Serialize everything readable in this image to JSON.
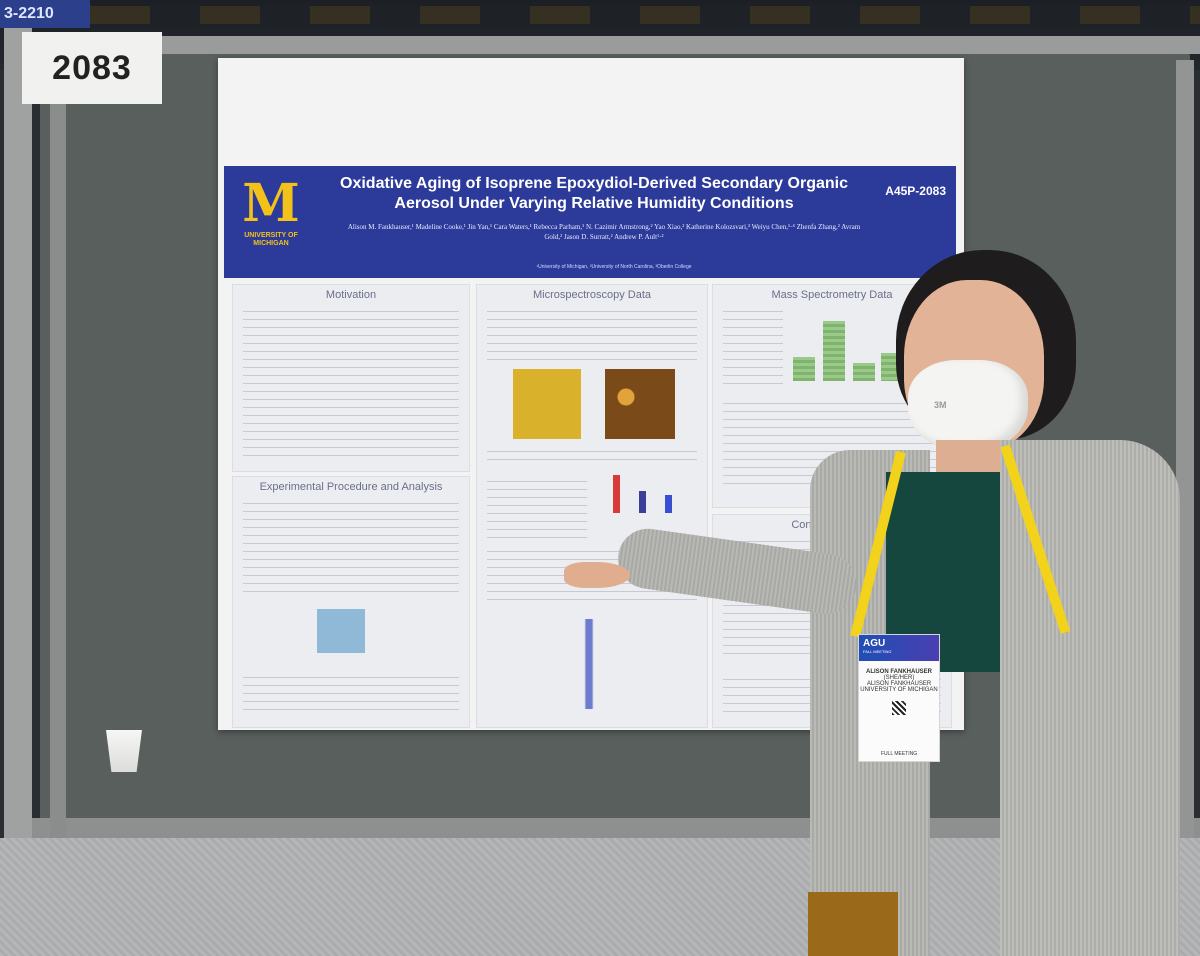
{
  "booth_sign": "3-2210",
  "poster_number": "2083",
  "poster": {
    "title": "Oxidative Aging of Isoprene Epoxydiol-Derived Secondary Organic Aerosol Under Varying Relative Humidity Conditions",
    "id": "A45P-2083",
    "logo_letter": "M",
    "logo_line1": "UNIVERSITY OF",
    "logo_line2": "MICHIGAN",
    "authors": "Alison M. Fankhauser,¹ Madeline Cooke,¹ Jin Yan,¹ Cara Waters,¹ Rebecca Parham,¹ N. Cazimir Armstrong,² Yao Xiao,² Katherine Kolozsvari,³ Weiyu Chen,¹·⁴ Zhenfa Zhang,² Avram Gold,² Jason D. Surratt,² Andrew P. Ault¹·²",
    "affiliations": "¹University of Michigan, ²University of North Carolina, ³Oberlin College",
    "sections": {
      "motivation": "Motivation",
      "microspectroscopy": "Microspectroscopy Data",
      "mass_spec": "Mass Spectrometry Data",
      "experimental": "Experimental Procedure and Analysis",
      "conclusions": "Conclusions and"
    }
  },
  "mask_logo": "3M",
  "badge": {
    "event": "AGU",
    "event_sub": "FALL MEETING",
    "name": "ALISON FANKHAUSER",
    "pronouns": "(SHE/HER)",
    "name2": "ALISON FANKHAUSER",
    "org": "UNIVERSITY OF MICHIGAN",
    "footer": "FULL MEETING"
  },
  "colors": {
    "poster_header": "#2c3a9a",
    "michigan_maize": "#f3c21a",
    "lanyard": "#f2d21a",
    "board": "#585f5d"
  }
}
